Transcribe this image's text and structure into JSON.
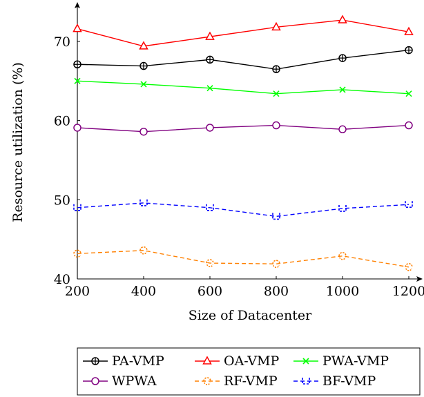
{
  "chart_data": {
    "type": "line",
    "title": "",
    "xlabel": "Size of Datacenter",
    "ylabel": "Resource utilization (%)",
    "x": [
      200,
      400,
      600,
      800,
      1000,
      1200
    ],
    "xlim": [
      200,
      1200
    ],
    "ylim": [
      40,
      75
    ],
    "xticks": [
      "200",
      "400",
      "600",
      "800",
      "1000",
      "1200"
    ],
    "yticks": [
      "40",
      "50",
      "60",
      "70"
    ],
    "grid": false,
    "legend_position": "bottom",
    "series": [
      {
        "name": "PA-VMP",
        "color": "#000000",
        "marker": "circle-plus",
        "dashed": false,
        "values": [
          67.1,
          66.9,
          67.7,
          66.5,
          67.9,
          68.9
        ]
      },
      {
        "name": "OA-VMP",
        "color": "#ff0000",
        "marker": "triangle",
        "dashed": false,
        "values": [
          71.6,
          69.4,
          70.6,
          71.8,
          72.7,
          71.2
        ]
      },
      {
        "name": "PWA-VMP",
        "color": "#00ff00",
        "marker": "x",
        "dashed": false,
        "values": [
          65.0,
          64.6,
          64.1,
          63.4,
          63.9,
          63.4
        ]
      },
      {
        "name": "WPWA",
        "color": "#800080",
        "marker": "circle",
        "dashed": false,
        "values": [
          59.1,
          58.6,
          59.1,
          59.4,
          58.9,
          59.4
        ]
      },
      {
        "name": "RF-VMP",
        "color": "#ff8000",
        "marker": "halfcircle",
        "dashed": true,
        "values": [
          43.2,
          43.6,
          42.0,
          41.9,
          42.9,
          41.5
        ]
      },
      {
        "name": "BF-VMP",
        "color": "#0000ff",
        "marker": "halfsquare",
        "dashed": true,
        "values": [
          49.0,
          49.6,
          49.0,
          47.9,
          48.9,
          49.4
        ]
      }
    ]
  }
}
